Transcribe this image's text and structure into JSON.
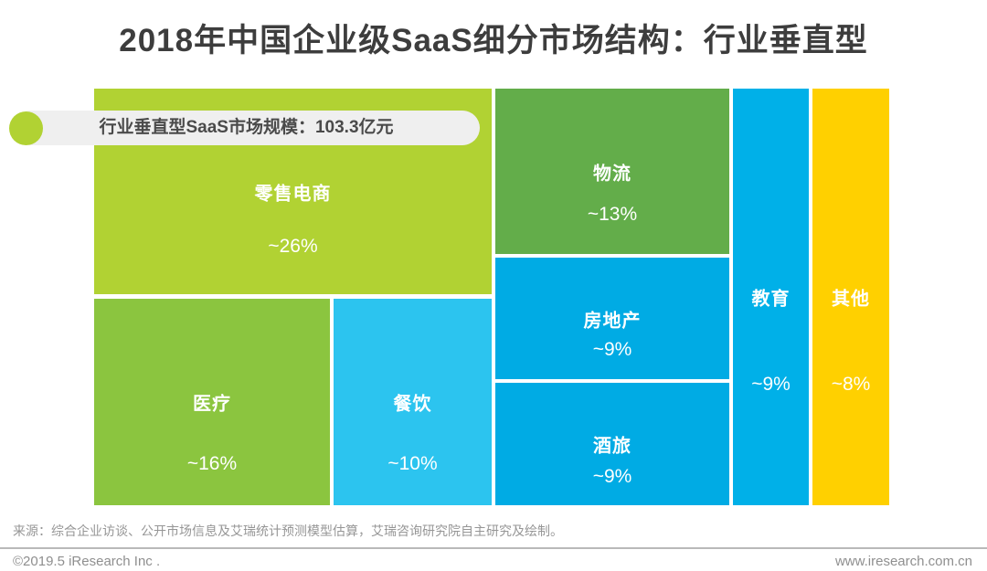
{
  "header": {
    "title": "2018年中国企业级SaaS细分市场结构：行业垂直型"
  },
  "legend": {
    "dot_color": "#b1d233",
    "label": "行业垂直型SaaS市场规模：103.3亿元"
  },
  "chart_data": {
    "type": "treemap",
    "title": "2018年中国企业级SaaS细分市场结构：行业垂直型",
    "total_label": "行业垂直型SaaS市场规模：103.3亿元",
    "total_value_yi_yuan": 103.3,
    "unit": "share of vertical-industry SaaS market",
    "segments": [
      {
        "id": "retail",
        "name": "零售电商",
        "share_label": "~26%",
        "share_pct": 26,
        "color": "#b1d233"
      },
      {
        "id": "medical",
        "name": "医疗",
        "share_label": "~16%",
        "share_pct": 16,
        "color": "#8bc53f"
      },
      {
        "id": "catering",
        "name": "餐饮",
        "share_label": "~10%",
        "share_pct": 10,
        "color": "#2cc4ef"
      },
      {
        "id": "logistics",
        "name": "物流",
        "share_label": "~13%",
        "share_pct": 13,
        "color": "#63ad4a"
      },
      {
        "id": "realestate",
        "name": "房地产",
        "share_label": "~9%",
        "share_pct": 9,
        "color": "#00abe4"
      },
      {
        "id": "hotel-travel",
        "name": "酒旅",
        "share_label": "~9%",
        "share_pct": 9,
        "color": "#00abe4"
      },
      {
        "id": "education",
        "name": "教育",
        "share_label": "~9%",
        "share_pct": 9,
        "color": "#00b0e8"
      },
      {
        "id": "other",
        "name": "其他",
        "share_label": "~8%",
        "share_pct": 8,
        "color": "#ffd000"
      }
    ]
  },
  "footer": {
    "source": "来源：综合企业访谈、公开市场信息及艾瑞统计预测模型估算，艾瑞咨询研究院自主研究及绘制。",
    "copyright": "©2019.5 iResearch Inc .",
    "website": "www.iresearch.com.cn"
  }
}
